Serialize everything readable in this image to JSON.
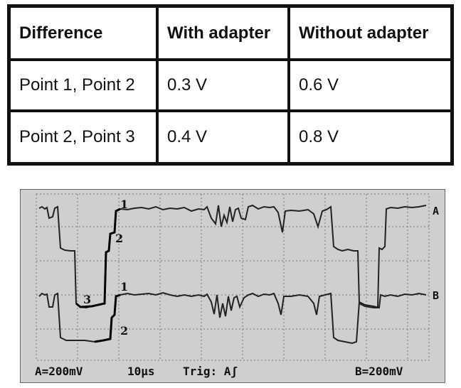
{
  "table": {
    "headers": [
      "Difference",
      "With adapter",
      "Without adapter"
    ],
    "rows": [
      [
        "Point 1, Point 2",
        "0.3 V",
        "0.6 V"
      ],
      [
        "Point 2, Point 3",
        "0.4 V",
        "0.8 V"
      ]
    ]
  },
  "scope": {
    "channel_a_label": "A",
    "channel_b_label": "B",
    "points_upper": [
      "1",
      "2",
      "3"
    ],
    "points_lower": [
      "1",
      "2"
    ],
    "footer_a": "A=200mV",
    "footer_time": "10µs",
    "footer_trig": "Trig: Aʃ",
    "footer_b": "B=200mV"
  }
}
